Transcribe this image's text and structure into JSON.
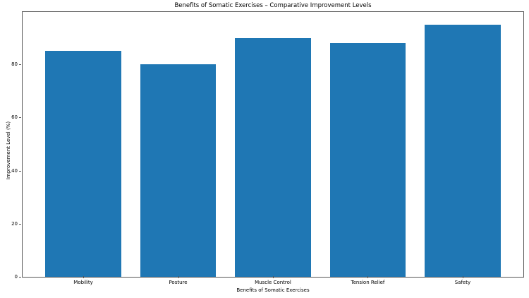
{
  "chart_data": {
    "type": "bar",
    "title": "Benefits of Somatic Exercises – Comparative Improvement Levels",
    "xlabel": "Benefits of Somatic Exercises",
    "ylabel": "Improvement Level (%)",
    "categories": [
      "Mobility",
      "Posture",
      "Muscle Control",
      "Tension Relief",
      "Safety"
    ],
    "values": [
      85,
      80,
      90,
      88,
      95
    ],
    "yticks": [
      0,
      20,
      40,
      60,
      80
    ],
    "ylim": [
      0,
      99.75
    ],
    "xlim": [
      -0.64,
      4.64
    ],
    "bar_width_data_units": 0.8,
    "bar_color": "#1f77b4",
    "spine_color": "#555555",
    "text_color": "#000000",
    "background_color": "#ffffff",
    "grid": false,
    "legend": false
  }
}
